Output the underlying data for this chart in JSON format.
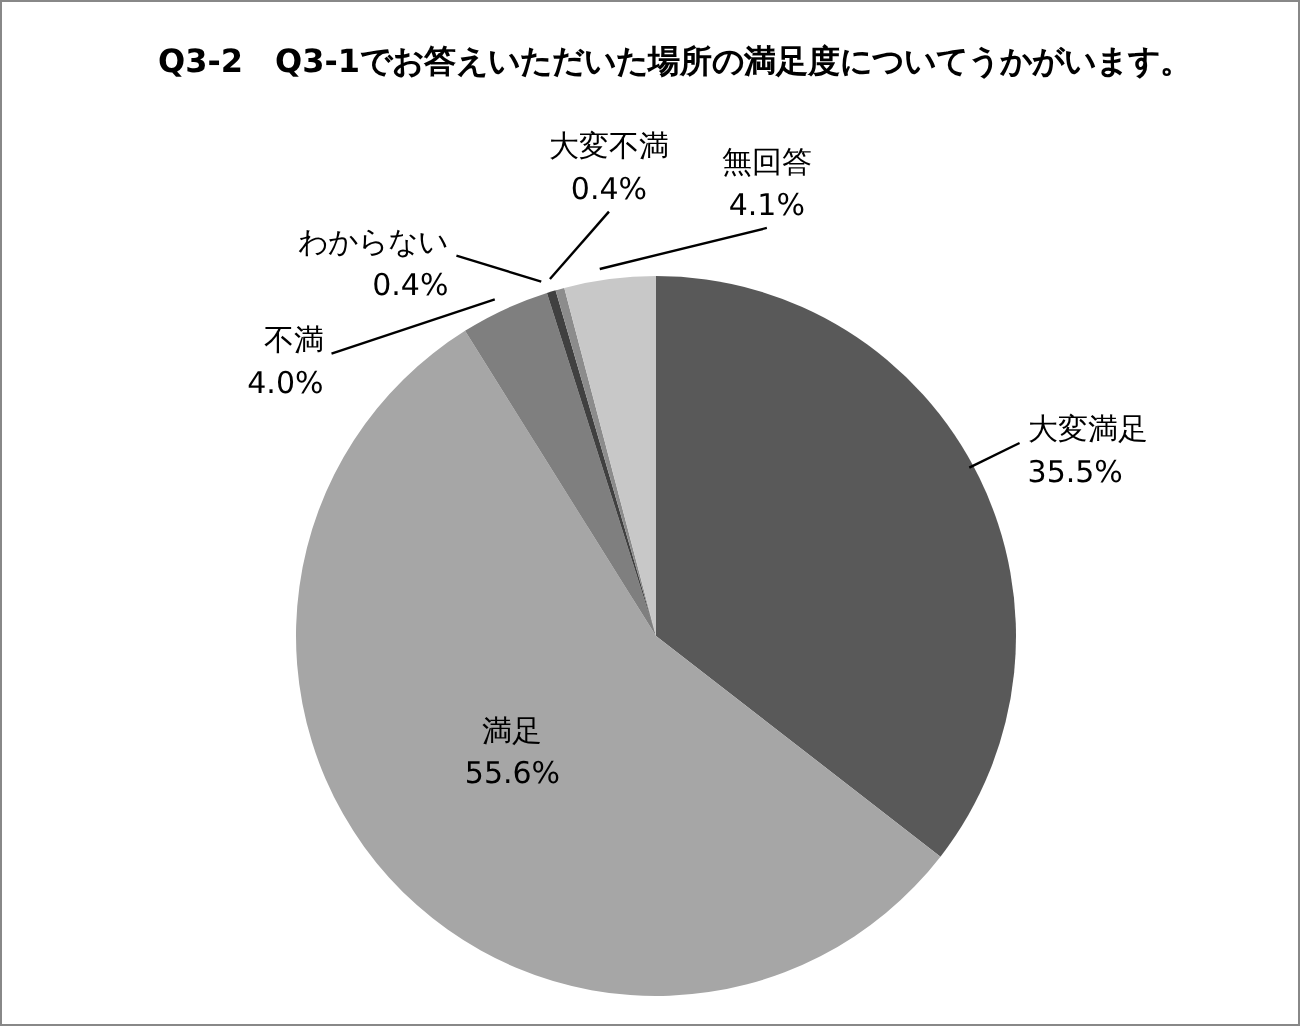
{
  "chart_data": {
    "type": "pie",
    "title": "Q3-2　Q3-1でお答えいただいた場所の満足度についてうかがいます。",
    "categories": [
      "大変満足",
      "満足",
      "不満",
      "わからない",
      "大変不満",
      "無回答"
    ],
    "values": [
      35.5,
      55.6,
      4.0,
      0.4,
      0.4,
      4.1
    ],
    "value_labels": [
      "35.5%",
      "55.6%",
      "4.0%",
      "0.4%",
      "0.4%",
      "4.1%"
    ],
    "colors": [
      "#595959",
      "#a6a6a6",
      "#7f7f7f",
      "#404040",
      "#8c8c8c",
      "#c8c8c8"
    ]
  }
}
